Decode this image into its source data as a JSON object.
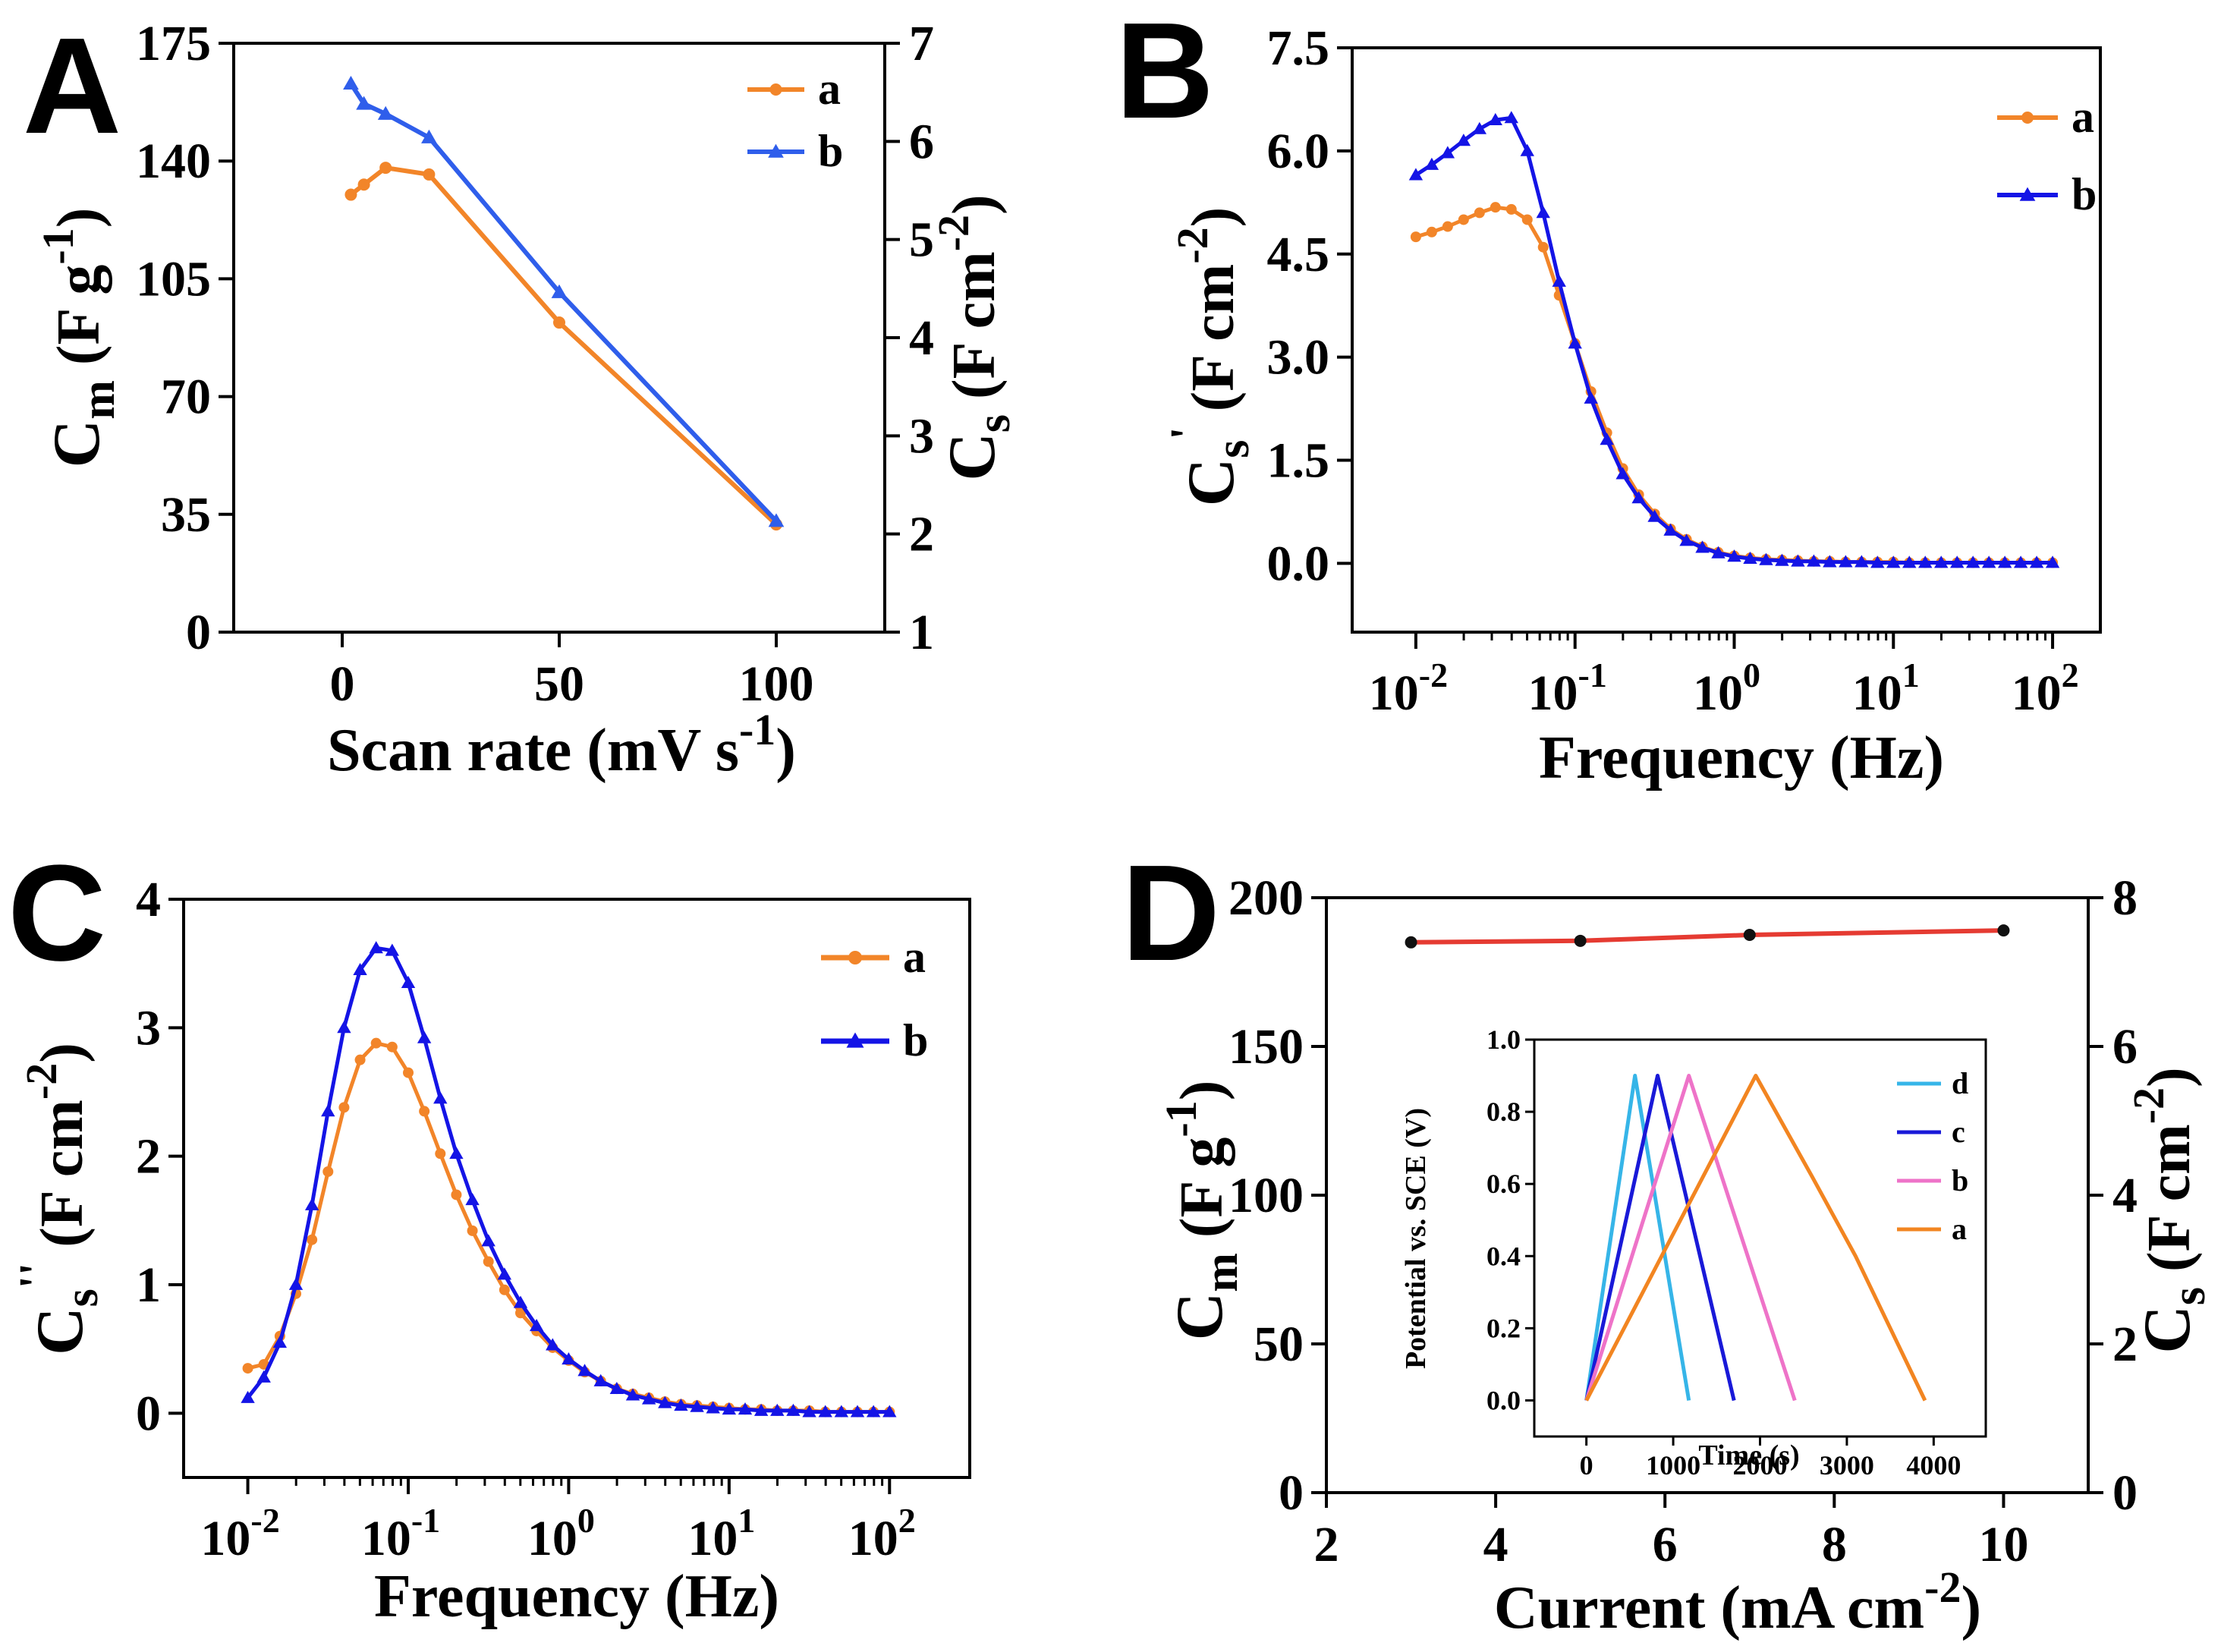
{
  "colors": {
    "a": "#F28529",
    "b": "#2F5EEB",
    "b_dark": "#1414E6",
    "line_d": "#E53B32",
    "pt_d": "#111111",
    "inset_d": "#36B5E8",
    "inset_c": "#1919D8",
    "inset_b": "#EE73C8",
    "inset_a": "#F28521"
  },
  "chart_data": [
    {
      "panel": "A",
      "type": "line",
      "xlabel": "Scan rate (mV s",
      "xlabel_sup": "-1",
      "xlabel_end": ")",
      "ylabel": "C",
      "ylabel_sub": "m",
      "ylabel_unit": " (F g",
      "ylabel_sup": "-1",
      "ylabel_end": ")",
      "y2label": "C",
      "y2label_sub": "s",
      "y2label_unit": " (F cm",
      "y2label_sup": "-2",
      "y2label_end": ")",
      "xlim": [
        -25,
        125
      ],
      "ylim": [
        0,
        175
      ],
      "y2lim": [
        1,
        7
      ],
      "xticks": [
        "0",
        "50",
        "100"
      ],
      "xtick_values": [
        0,
        50,
        100
      ],
      "yticks": [
        "0",
        "35",
        "70",
        "105",
        "140",
        "175"
      ],
      "ytick_values": [
        0,
        35,
        70,
        105,
        140,
        175
      ],
      "y2ticks": [
        "1",
        "2",
        "3",
        "4",
        "5",
        "6",
        "7"
      ],
      "y2tick_values": [
        1,
        2,
        3,
        4,
        5,
        6,
        7
      ],
      "legend": [
        "a",
        "b"
      ],
      "series": [
        {
          "name": "a",
          "x": [
            2,
            5,
            10,
            20,
            50,
            100
          ],
          "values": [
            130,
            133,
            138,
            136,
            92,
            32
          ]
        },
        {
          "name": "b",
          "x": [
            2,
            5,
            10,
            20,
            50,
            100
          ],
          "values": [
            163,
            157,
            154,
            147,
            101,
            33
          ]
        }
      ]
    },
    {
      "panel": "B",
      "type": "line",
      "xscale": "log",
      "xlabel": "Frequency (Hz)",
      "ylabel": "C",
      "ylabel_sub": "s",
      "ylabel_prime": "'",
      "ylabel_unit": " (F cm",
      "ylabel_sup": "-2",
      "ylabel_end": ")",
      "xlim_log10": [
        -2.4,
        2.3
      ],
      "ylim": [
        -1,
        7.5
      ],
      "xtick_exponents": [
        "-2",
        "-1",
        "0",
        "1",
        "2"
      ],
      "xtick_base": "10",
      "yticks": [
        "0.0",
        "1.5",
        "3.0",
        "4.5",
        "6.0",
        "7.5"
      ],
      "ytick_values": [
        0,
        1.5,
        3,
        4.5,
        6,
        7.5
      ],
      "legend": [
        "a",
        "b"
      ],
      "series": [
        {
          "name": "a",
          "log10_x": [
            -2,
            -1.9,
            -1.8,
            -1.7,
            -1.6,
            -1.5,
            -1.4,
            -1.3,
            -1.2,
            -1.1,
            -1,
            -0.9,
            -0.8,
            -0.7,
            -0.6,
            -0.5,
            -0.4,
            -0.3,
            -0.2,
            -0.1,
            0,
            0.1,
            0.2,
            0.3,
            0.4,
            0.5,
            0.6,
            0.7,
            0.8,
            0.9,
            1,
            1.1,
            1.2,
            1.3,
            1.4,
            1.5,
            1.6,
            1.7,
            1.8,
            1.9,
            2
          ],
          "values": [
            4.75,
            4.82,
            4.9,
            5.0,
            5.1,
            5.18,
            5.15,
            5.0,
            4.6,
            3.9,
            3.2,
            2.5,
            1.9,
            1.38,
            1.0,
            0.72,
            0.5,
            0.35,
            0.24,
            0.16,
            0.11,
            0.08,
            0.06,
            0.05,
            0.04,
            0.03,
            0.03,
            0.02,
            0.02,
            0.02,
            0.02,
            0.01,
            0.01,
            0.01,
            0.01,
            0.01,
            0.01,
            0.01,
            0.01,
            0.01,
            0.01
          ]
        },
        {
          "name": "b",
          "log10_x": [
            -2,
            -1.9,
            -1.8,
            -1.7,
            -1.6,
            -1.5,
            -1.4,
            -1.3,
            -1.2,
            -1.1,
            -1,
            -0.9,
            -0.8,
            -0.7,
            -0.6,
            -0.5,
            -0.4,
            -0.3,
            -0.2,
            -0.1,
            0,
            0.1,
            0.2,
            0.3,
            0.4,
            0.5,
            0.6,
            0.7,
            0.8,
            0.9,
            1,
            1.1,
            1.2,
            1.3,
            1.4,
            1.5,
            1.6,
            1.7,
            1.8,
            1.9,
            2
          ],
          "values": [
            5.65,
            5.8,
            5.97,
            6.15,
            6.32,
            6.45,
            6.48,
            6.0,
            5.1,
            4.1,
            3.2,
            2.4,
            1.8,
            1.3,
            0.95,
            0.68,
            0.48,
            0.33,
            0.23,
            0.15,
            0.1,
            0.07,
            0.05,
            0.04,
            0.03,
            0.03,
            0.02,
            0.02,
            0.02,
            0.01,
            0.01,
            0.01,
            0.01,
            0.01,
            0.01,
            0.01,
            0.01,
            0.01,
            0.01,
            0.01,
            0.01
          ]
        }
      ]
    },
    {
      "panel": "C",
      "type": "line",
      "xscale": "log",
      "xlabel": "Frequency (Hz)",
      "ylabel": "C",
      "ylabel_sub": "s",
      "ylabel_prime": "''",
      "ylabel_unit": " (F cm",
      "ylabel_sup": "-2",
      "ylabel_end": ")",
      "xlim_log10": [
        -2.4,
        2.5
      ],
      "ylim": [
        -0.5,
        4
      ],
      "xtick_exponents": [
        "-2",
        "-1",
        "0",
        "1",
        "2"
      ],
      "xtick_base": "10",
      "yticks": [
        "0",
        "1",
        "2",
        "3",
        "4"
      ],
      "ytick_values": [
        0,
        1,
        2,
        3,
        4
      ],
      "legend": [
        "a",
        "b"
      ],
      "series": [
        {
          "name": "a",
          "log10_x": [
            -2,
            -1.9,
            -1.8,
            -1.7,
            -1.6,
            -1.5,
            -1.4,
            -1.3,
            -1.2,
            -1.1,
            -1,
            -0.9,
            -0.8,
            -0.7,
            -0.6,
            -0.5,
            -0.4,
            -0.3,
            -0.2,
            -0.1,
            0,
            0.1,
            0.2,
            0.3,
            0.4,
            0.5,
            0.6,
            0.7,
            0.8,
            0.9,
            1,
            1.1,
            1.2,
            1.3,
            1.4,
            1.5,
            1.6,
            1.7,
            1.8,
            1.9,
            2
          ],
          "values": [
            0.35,
            0.38,
            0.6,
            0.93,
            1.35,
            1.88,
            2.38,
            2.75,
            2.88,
            2.85,
            2.65,
            2.35,
            2.02,
            1.7,
            1.42,
            1.18,
            0.96,
            0.78,
            0.64,
            0.51,
            0.41,
            0.32,
            0.25,
            0.19,
            0.15,
            0.12,
            0.09,
            0.07,
            0.06,
            0.05,
            0.04,
            0.03,
            0.03,
            0.02,
            0.02,
            0.02,
            0.01,
            0.01,
            0.01,
            0.01,
            0.01
          ]
        },
        {
          "name": "b",
          "log10_x": [
            -2,
            -1.9,
            -1.8,
            -1.7,
            -1.6,
            -1.5,
            -1.4,
            -1.3,
            -1.2,
            -1.1,
            -1,
            -0.9,
            -0.8,
            -0.7,
            -0.6,
            -0.5,
            -0.4,
            -0.3,
            -0.2,
            -0.1,
            0,
            0.1,
            0.2,
            0.3,
            0.4,
            0.5,
            0.6,
            0.7,
            0.8,
            0.9,
            1,
            1.1,
            1.2,
            1.3,
            1.4,
            1.5,
            1.6,
            1.7,
            1.8,
            1.9,
            2
          ],
          "values": [
            0.12,
            0.28,
            0.55,
            1.0,
            1.62,
            2.35,
            3.0,
            3.45,
            3.62,
            3.6,
            3.35,
            2.92,
            2.45,
            2.02,
            1.66,
            1.34,
            1.08,
            0.86,
            0.68,
            0.53,
            0.42,
            0.33,
            0.25,
            0.19,
            0.14,
            0.11,
            0.08,
            0.06,
            0.05,
            0.04,
            0.03,
            0.03,
            0.02,
            0.02,
            0.02,
            0.01,
            0.01,
            0.01,
            0.01,
            0.01,
            0.01
          ]
        }
      ]
    },
    {
      "panel": "D",
      "type": "line",
      "xlabel": "Current (mA cm",
      "xlabel_sup": "-2",
      "xlabel_end": ")",
      "ylabel": "C",
      "ylabel_sub": "m",
      "ylabel_unit": " (F g",
      "ylabel_sup": "-1",
      "ylabel_end": ")",
      "y2label": "C",
      "y2label_sub": "s",
      "y2label_unit": " (F cm",
      "y2label_sup": "-2",
      "y2label_end": ")",
      "xlim": [
        2,
        11
      ],
      "ylim": [
        0,
        200
      ],
      "y2lim": [
        0,
        8
      ],
      "xticks": [
        "2",
        "4",
        "6",
        "8",
        "10"
      ],
      "xtick_values": [
        2,
        4,
        6,
        8,
        10
      ],
      "yticks": [
        "0",
        "50",
        "100",
        "150",
        "200"
      ],
      "ytick_values": [
        0,
        50,
        100,
        150,
        200
      ],
      "y2ticks": [
        "0",
        "2",
        "4",
        "6",
        "8"
      ],
      "y2tick_values": [
        0,
        2,
        4,
        6,
        8
      ],
      "series": [
        {
          "name": "Cm",
          "x": [
            3,
            5,
            7,
            10
          ],
          "values": [
            185,
            185.5,
            187.5,
            189
          ]
        }
      ]
    },
    {
      "panel": "D-inset",
      "type": "line",
      "xlabel": "Time (s)",
      "ylabel": "Potential vs. SCE (V)",
      "xlim": [
        -600,
        4600
      ],
      "ylim": [
        -0.1,
        1.0
      ],
      "xticks": [
        "0",
        "1000",
        "2000",
        "3000",
        "4000"
      ],
      "xtick_values": [
        0,
        1000,
        2000,
        3000,
        4000
      ],
      "yticks": [
        "0.0",
        "0.2",
        "0.4",
        "0.6",
        "0.8",
        "1.0"
      ],
      "ytick_values": [
        0,
        0.2,
        0.4,
        0.6,
        0.8,
        1.0
      ],
      "legend": [
        "d",
        "c",
        "b",
        "a"
      ],
      "series": [
        {
          "name": "d",
          "x": [
            0,
            560,
            1180
          ],
          "values": [
            0,
            0.9,
            0
          ]
        },
        {
          "name": "c",
          "x": [
            0,
            820,
            1700
          ],
          "values": [
            0,
            0.9,
            0
          ]
        },
        {
          "name": "b",
          "x": [
            0,
            1180,
            2400
          ],
          "values": [
            0,
            0.9,
            0
          ]
        },
        {
          "name": "a",
          "x": [
            0,
            1950,
            2600,
            3100,
            3900
          ],
          "values": [
            0,
            0.9,
            0.62,
            0.4,
            0
          ]
        }
      ]
    }
  ]
}
